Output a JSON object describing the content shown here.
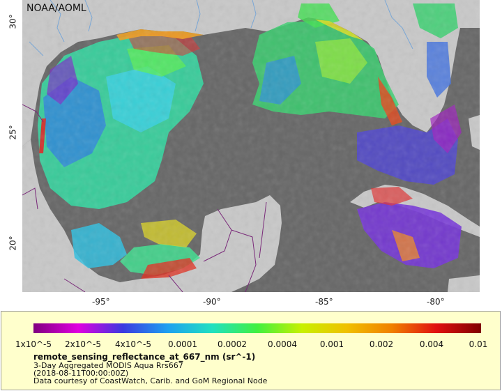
{
  "map": {
    "credit": "NOAA/AOML",
    "longitude_labels": [
      "-95°",
      "-90°",
      "-85°",
      "-80°"
    ],
    "latitude_labels": [
      "30°",
      "25°",
      "20°"
    ],
    "colors": {
      "land": "#c8c8c8",
      "no_data": "#666666",
      "rivers": "#7aa7d6",
      "borders": "#7a2a7a"
    }
  },
  "legend": {
    "scale_labels": [
      "1x10^-5",
      "2x10^-5",
      "4x10^-5",
      "0.0001",
      "0.0002",
      "0.0004",
      "0.001",
      "0.002",
      "0.004",
      "0.01"
    ],
    "title": "remote_sensing_reflectance_at_667_nm (sr^-1)",
    "line1": "3-Day Aggregated MODIS Aqua Rrs667",
    "line2": "(2018-08-11T00:00:00Z)",
    "line3": "Data courtesy of CoastWatch, Carib. and GoM Regional Node",
    "colormap": [
      "#800080",
      "#e000e0",
      "#3a3ae0",
      "#1ea0f0",
      "#20e0c0",
      "#40f040",
      "#c8f000",
      "#f0c000",
      "#f08000",
      "#e01010",
      "#800000"
    ]
  }
}
